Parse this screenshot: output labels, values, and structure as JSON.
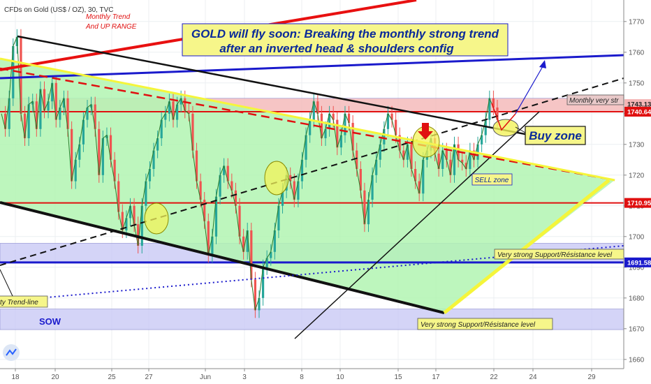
{
  "header": {
    "symbol_title": "CFDs on Gold (US$ / OZ), 30, TVC"
  },
  "title": {
    "line1": "GOLD will fly soon: Breaking the monthly strong trend",
    "line2": "after an inverted head & shoulders config"
  },
  "annotations": {
    "monthly_trend": "Monthly Trend",
    "up_range": "And UP RANGE",
    "buy_zone": "Buy zone",
    "sell_zone": "SELL zone",
    "monthly_very_str": "Monthly very str",
    "support_resistance_upper": "Very strong Support/Résistance level",
    "support_resistance_lower": "Very strong Support/Résistance level",
    "trend_line": "ty Trend-line",
    "sow": "SOW"
  },
  "colors": {
    "green_fill": "#b2f5b2",
    "red_zone": "#f4b6b6",
    "blue_zone": "#c9c9f5",
    "accent_red": "#e01010",
    "accent_blue": "#1a1acc",
    "title_blue": "#0a2a9a",
    "yellow": "#ffff55"
  },
  "chart_data": {
    "type": "line",
    "x_ticks": [
      "18",
      "20",
      "25",
      "27",
      "Jun",
      "3",
      "8",
      "10",
      "15",
      "17",
      "22",
      "24",
      "29"
    ],
    "ylim": [
      1657,
      1777
    ],
    "y_ticks": [
      1660,
      1670,
      1680,
      1690,
      1700,
      1710,
      1720,
      1730,
      1740,
      1750,
      1760,
      1770
    ],
    "price_labels": [
      {
        "value": 1743.13,
        "text": "1743.13",
        "color": "#f4b6b6",
        "text_color": "#222222"
      },
      {
        "value": 1740.64,
        "text": "1740.64",
        "color": "#e01010",
        "text_color": "#ffffff"
      },
      {
        "value": 1710.95,
        "text": "1710.95",
        "color": "#e01010",
        "text_color": "#ffffff"
      },
      {
        "value": 1691.58,
        "text": "1691.58",
        "color": "#1a1acc",
        "text_color": "#ffffff"
      }
    ],
    "levels": [
      {
        "name": "red-level-upper",
        "value": 1740.64,
        "color": "#e01010"
      },
      {
        "name": "red-level-lower",
        "value": 1710.95,
        "color": "#e01010"
      },
      {
        "name": "blue-level",
        "value": 1691.58,
        "color": "#1a1acc"
      }
    ],
    "zones": [
      {
        "name": "monthly-resistance-zone",
        "from": 1740.6,
        "to": 1745.0,
        "color": "#f4b6b6"
      },
      {
        "name": "upper-support-zone",
        "from": 1691.5,
        "to": 1697.8,
        "color": "#c9c9f5"
      },
      {
        "name": "lower-support-zone",
        "from": 1669.7,
        "to": 1676.4,
        "color": "#c9c9f5"
      }
    ],
    "series": [
      {
        "values": [
          1740,
          1735,
          1745,
          1762,
          1765,
          1740,
          1732,
          1743,
          1744,
          1735,
          1748,
          1741,
          1744,
          1750,
          1738,
          1742,
          1745,
          1735,
          1718,
          1725,
          1730,
          1738,
          1742,
          1743,
          1735,
          1720,
          1732,
          1733,
          1725,
          1718,
          1708,
          1702,
          1706,
          1710,
          1704,
          1697,
          1710,
          1718,
          1722,
          1728,
          1732,
          1738,
          1740,
          1744,
          1738,
          1743,
          1745,
          1741,
          1740,
          1728,
          1718,
          1712,
          1705,
          1694,
          1700,
          1713,
          1720,
          1723,
          1718,
          1715,
          1710,
          1700,
          1695,
          1702,
          1686,
          1676,
          1680,
          1690,
          1693,
          1695,
          1702,
          1710,
          1715,
          1720,
          1718,
          1712,
          1718,
          1725,
          1733,
          1738,
          1744,
          1740,
          1732,
          1735,
          1740,
          1738,
          1729,
          1733,
          1740,
          1737,
          1728,
          1722,
          1715,
          1704,
          1712,
          1720,
          1725,
          1730,
          1735,
          1740,
          1738,
          1733,
          1728,
          1725,
          1730,
          1722,
          1718,
          1714,
          1725,
          1728,
          1732,
          1727,
          1722,
          1728,
          1725,
          1720,
          1730,
          1725,
          1724,
          1722,
          1728,
          1725,
          1730,
          1733,
          1738,
          1745,
          1742,
          1738
        ]
      }
    ]
  }
}
